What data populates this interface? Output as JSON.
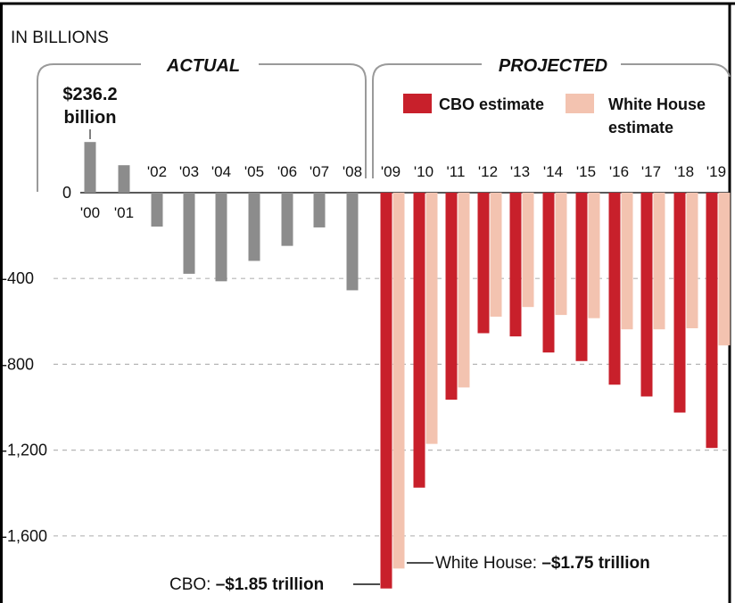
{
  "chart_data": {
    "type": "bar",
    "units_label": "IN BILLIONS",
    "section_labels": {
      "actual": "ACTUAL",
      "projected": "PROJECTED"
    },
    "ylim": [
      -1850,
      236
    ],
    "y_ticks": [
      {
        "value": 0,
        "label": "0"
      },
      {
        "value": -400,
        "label": "-400"
      },
      {
        "value": -800,
        "label": "-800"
      },
      {
        "value": -1200,
        "label": "-1,200"
      },
      {
        "value": -1600,
        "label": "-1,600"
      }
    ],
    "grid": "dashed horizontal",
    "legend_position": "top-right",
    "colors": {
      "actual": "#8c8c8c",
      "cbo": "#c8202b",
      "white_house": "#f3c3b0"
    },
    "actual": {
      "name": "Actual",
      "categories": [
        "'00",
        "'01",
        "'02",
        "'03",
        "'04",
        "'05",
        "'06",
        "'07",
        "'08"
      ],
      "values": [
        236.2,
        128,
        -158,
        -378,
        -413,
        -318,
        -248,
        -162,
        -455
      ]
    },
    "projected": {
      "categories": [
        "'09",
        "'10",
        "'11",
        "'12",
        "'13",
        "'14",
        "'15",
        "'16",
        "'17",
        "'18",
        "'19"
      ],
      "series": [
        {
          "name": "CBO estimate",
          "values": [
            -1845,
            -1375,
            -965,
            -655,
            -670,
            -745,
            -785,
            -895,
            -950,
            -1025,
            -1190
          ]
        },
        {
          "name": "White House estimate",
          "values": [
            -1752,
            -1171,
            -908,
            -578,
            -533,
            -570,
            -585,
            -637,
            -637,
            -632,
            -712
          ]
        }
      ]
    },
    "annotations": {
      "peak_value": "$236.2",
      "peak_unit": "billion",
      "cbo_low_prefix": "CBO: ",
      "cbo_low_value": "–$1.85 trillion",
      "wh_low_prefix": "White House: ",
      "wh_low_value": "–$1.75 trillion"
    }
  }
}
